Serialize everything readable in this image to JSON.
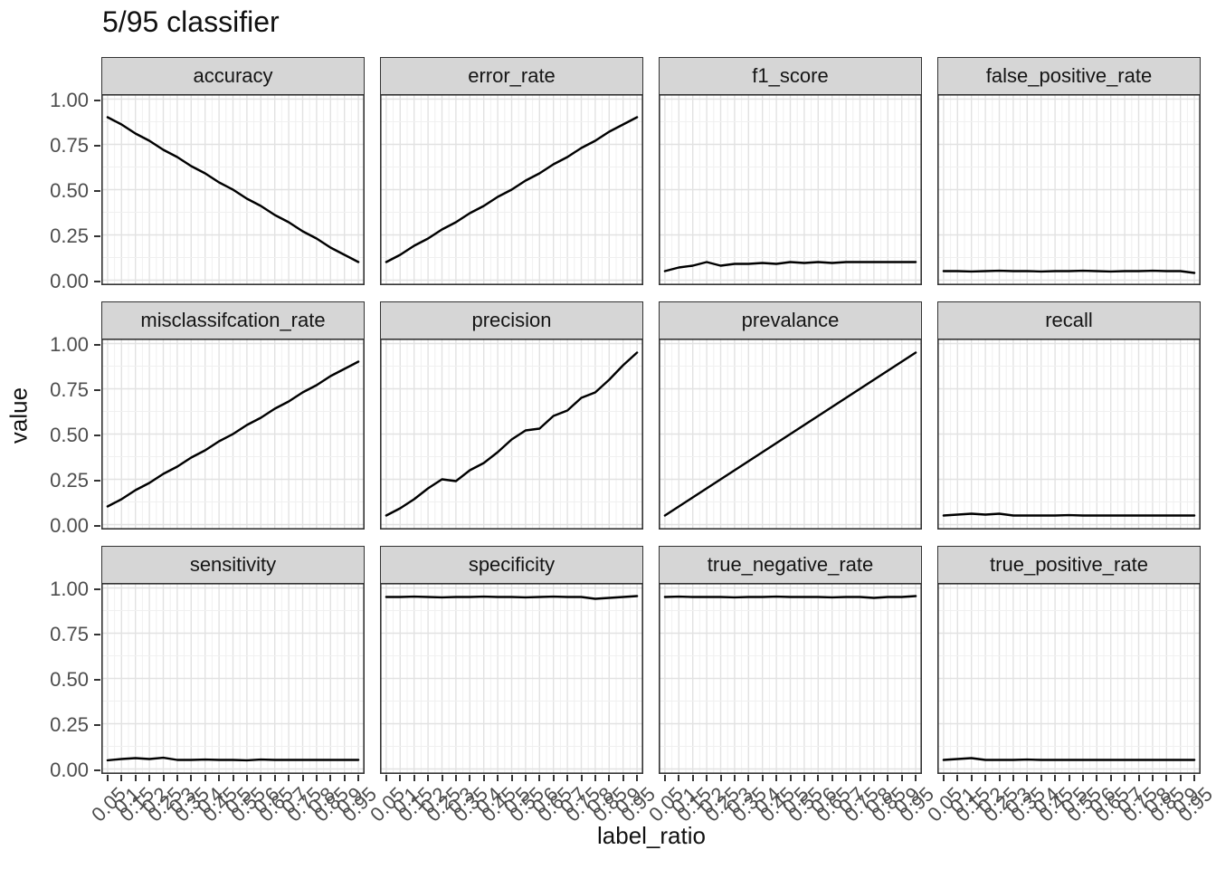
{
  "title": "5/95 classifier",
  "colors": {
    "line": "#000000",
    "strip_background": "#d6d6d6",
    "panel_border": "#333333",
    "grid_major": "#e2e2e2",
    "grid_minor": "#f0f0f0",
    "tick_label": "#4d4d4d"
  },
  "chart_data": {
    "type": "line",
    "title": "5/95 classifier",
    "xlabel": "label_ratio",
    "ylabel": "value",
    "ylim": [
      0,
      1
    ],
    "grid": "major and minor, light gray on white panels",
    "legend_position": "none",
    "facet_layout": "3 rows x 4 columns",
    "x": [
      0.05,
      0.1,
      0.15,
      0.2,
      0.25,
      0.3,
      0.35,
      0.4,
      0.45,
      0.5,
      0.55,
      0.6,
      0.65,
      0.7,
      0.75,
      0.8,
      0.85,
      0.9,
      0.95
    ],
    "x_tick_labels": [
      "0.05",
      "0.1",
      "0.15",
      "0.2",
      "0.25",
      "0.3",
      "0.35",
      "0.4",
      "0.45",
      "0.5",
      "0.55",
      "0.6",
      "0.65",
      "0.7",
      "0.75",
      "0.8",
      "0.85",
      "0.9",
      "0.95"
    ],
    "y_tick_labels": [
      "1.00",
      "0.75",
      "0.50",
      "0.25",
      "0.00"
    ],
    "y_tick_values": [
      1.0,
      0.75,
      0.5,
      0.25,
      0.0
    ],
    "facets": [
      {
        "name": "accuracy",
        "values": [
          0.9,
          0.86,
          0.81,
          0.77,
          0.72,
          0.68,
          0.63,
          0.59,
          0.54,
          0.5,
          0.45,
          0.41,
          0.36,
          0.32,
          0.27,
          0.23,
          0.18,
          0.14,
          0.1
        ]
      },
      {
        "name": "error_rate",
        "values": [
          0.1,
          0.14,
          0.19,
          0.23,
          0.28,
          0.32,
          0.37,
          0.41,
          0.46,
          0.5,
          0.55,
          0.59,
          0.64,
          0.68,
          0.73,
          0.77,
          0.82,
          0.86,
          0.9
        ]
      },
      {
        "name": "f1_score",
        "values": [
          0.05,
          0.07,
          0.08,
          0.1,
          0.08,
          0.09,
          0.09,
          0.095,
          0.09,
          0.1,
          0.095,
          0.1,
          0.095,
          0.1,
          0.1,
          0.1,
          0.1,
          0.1,
          0.1
        ]
      },
      {
        "name": "false_positive_rate",
        "values": [
          0.05,
          0.05,
          0.048,
          0.05,
          0.052,
          0.05,
          0.05,
          0.048,
          0.05,
          0.05,
          0.052,
          0.05,
          0.048,
          0.05,
          0.05,
          0.052,
          0.05,
          0.05,
          0.04
        ]
      },
      {
        "name": "misclassifcation_rate",
        "values": [
          0.1,
          0.14,
          0.19,
          0.23,
          0.28,
          0.32,
          0.37,
          0.41,
          0.46,
          0.5,
          0.55,
          0.59,
          0.64,
          0.68,
          0.73,
          0.77,
          0.82,
          0.86,
          0.9
        ]
      },
      {
        "name": "precision",
        "values": [
          0.05,
          0.09,
          0.14,
          0.2,
          0.25,
          0.24,
          0.3,
          0.34,
          0.4,
          0.47,
          0.52,
          0.53,
          0.6,
          0.63,
          0.7,
          0.73,
          0.8,
          0.88,
          0.95
        ]
      },
      {
        "name": "prevalance",
        "values": [
          0.05,
          0.1,
          0.15,
          0.2,
          0.25,
          0.3,
          0.35,
          0.4,
          0.45,
          0.5,
          0.55,
          0.6,
          0.65,
          0.7,
          0.75,
          0.8,
          0.85,
          0.9,
          0.95
        ]
      },
      {
        "name": "recall",
        "values": [
          0.05,
          0.055,
          0.06,
          0.055,
          0.06,
          0.05,
          0.05,
          0.05,
          0.05,
          0.052,
          0.05,
          0.05,
          0.05,
          0.05,
          0.05,
          0.05,
          0.05,
          0.05,
          0.05
        ]
      },
      {
        "name": "sensitivity",
        "values": [
          0.048,
          0.055,
          0.06,
          0.055,
          0.062,
          0.05,
          0.05,
          0.052,
          0.05,
          0.05,
          0.048,
          0.052,
          0.05,
          0.05,
          0.05,
          0.05,
          0.05,
          0.05,
          0.05
        ]
      },
      {
        "name": "specificity",
        "values": [
          0.95,
          0.95,
          0.952,
          0.95,
          0.948,
          0.95,
          0.95,
          0.952,
          0.95,
          0.95,
          0.948,
          0.95,
          0.952,
          0.95,
          0.95,
          0.94,
          0.945,
          0.95,
          0.955
        ]
      },
      {
        "name": "true_negative_rate",
        "values": [
          0.95,
          0.952,
          0.95,
          0.95,
          0.95,
          0.948,
          0.95,
          0.95,
          0.952,
          0.95,
          0.95,
          0.95,
          0.948,
          0.95,
          0.95,
          0.945,
          0.95,
          0.95,
          0.955
        ]
      },
      {
        "name": "true_positive_rate",
        "values": [
          0.05,
          0.055,
          0.06,
          0.05,
          0.05,
          0.05,
          0.052,
          0.05,
          0.05,
          0.05,
          0.05,
          0.05,
          0.05,
          0.05,
          0.05,
          0.05,
          0.05,
          0.05,
          0.05
        ]
      }
    ]
  }
}
